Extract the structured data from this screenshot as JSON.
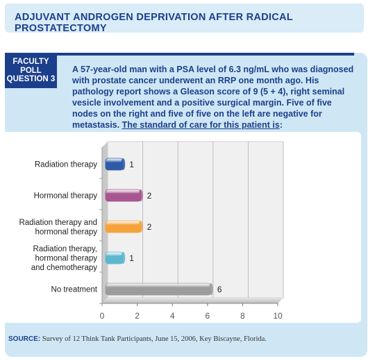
{
  "header": {
    "title": "ADJUVANT ANDROGEN DEPRIVATION AFTER RADICAL PROSTATECTOMY"
  },
  "badge": {
    "line1": "FACULTY",
    "line2": "POLL",
    "line3": "QUESTION 3"
  },
  "question": {
    "text": "A 57-year-old man with a PSA level of 6.3 ng/mL who was diagnosed with prostate cancer underwent an RRP one month ago. His pathology report shows a Gleason score of 9 (5 + 4), right seminal vesicle involvement and a positive surgical margin. Five of five nodes on the right and five of five on the left are negative for metastasis. ",
    "underlined": "The standard of care for this patient is",
    "tail": ":"
  },
  "chart_data": {
    "type": "bar",
    "orientation": "horizontal",
    "categories": [
      [
        "Radiation therapy"
      ],
      [
        "Hormonal therapy"
      ],
      [
        "Radiation therapy and",
        "hormonal therapy"
      ],
      [
        "Radiation therapy,",
        "hormonal therapy",
        "and chemotherapy"
      ],
      [
        "No treatment"
      ]
    ],
    "values": [
      1,
      2,
      2,
      1,
      6
    ],
    "colors": [
      "#2f5aa8",
      "#a8568f",
      "#f5a23a",
      "#5db7cf",
      "#9c9c9c"
    ],
    "xlim": [
      0,
      10
    ],
    "xticks": [
      "0",
      "2",
      "4",
      "6",
      "8",
      "10"
    ],
    "grid": true
  },
  "source": {
    "label": "SOURCE:",
    "text": " Survey of 12 Think Tank Participants, June 15, 2006, Key Biscayne, Florida."
  }
}
